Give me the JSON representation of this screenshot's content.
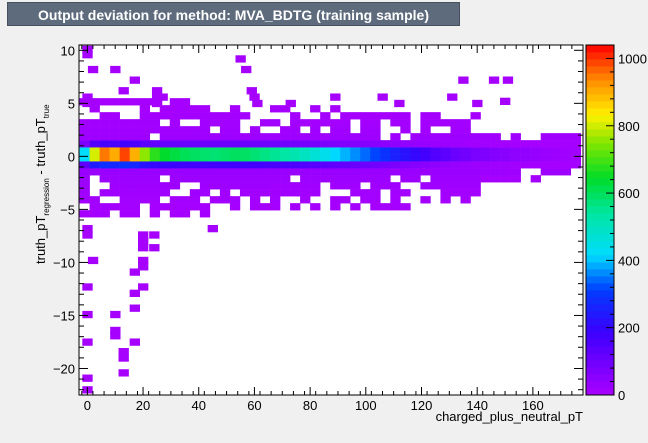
{
  "title": "Output deviation for method: MVA_BDTG (training sample)",
  "chart_data": {
    "type": "heatmap",
    "xlabel": "charged_plus_neutral_pT",
    "ylabel_parts": {
      "base": "truth_pT",
      "sub1": "regression",
      "mid": " - truth_pT",
      "sub2": "true"
    },
    "xlim": [
      -3,
      178
    ],
    "ylim": [
      -22.5,
      10.5
    ],
    "x_ticks": [
      0,
      20,
      40,
      60,
      80,
      100,
      120,
      140,
      160
    ],
    "y_ticks": [
      10,
      5,
      0,
      -5,
      -10,
      -15,
      -20
    ],
    "x_tick_labels": [
      "0",
      "20",
      "40",
      "60",
      "80",
      "100",
      "120",
      "140",
      "160"
    ],
    "y_tick_labels": [
      "10",
      "5",
      "0",
      "−5",
      "−10",
      "−15",
      "−20"
    ],
    "bin_width_x": 3.6,
    "bin_width_y": 0.66,
    "z_range": [
      0,
      1040
    ],
    "colorbar_ticks": [
      0,
      200,
      400,
      600,
      800,
      1000
    ],
    "colorbar_labels": [
      "0",
      "200",
      "400",
      "600",
      "800",
      "1000"
    ],
    "core_profile": [
      {
        "x": 0,
        "v": 420
      },
      {
        "x": 2,
        "v": 760
      },
      {
        "x": 5,
        "v": 980
      },
      {
        "x": 9,
        "v": 880
      },
      {
        "x": 13,
        "v": 1000
      },
      {
        "x": 17,
        "v": 900
      },
      {
        "x": 22,
        "v": 700
      },
      {
        "x": 28,
        "v": 640
      },
      {
        "x": 36,
        "v": 600
      },
      {
        "x": 45,
        "v": 580
      },
      {
        "x": 55,
        "v": 600
      },
      {
        "x": 65,
        "v": 560
      },
      {
        "x": 75,
        "v": 520
      },
      {
        "x": 82,
        "v": 470
      },
      {
        "x": 88,
        "v": 420
      },
      {
        "x": 94,
        "v": 380
      },
      {
        "x": 100,
        "v": 340
      },
      {
        "x": 106,
        "v": 300
      },
      {
        "x": 112,
        "v": 240
      },
      {
        "x": 118,
        "v": 200
      },
      {
        "x": 125,
        "v": 150
      },
      {
        "x": 132,
        "v": 110
      },
      {
        "x": 140,
        "v": 80
      },
      {
        "x": 150,
        "v": 55
      },
      {
        "x": 160,
        "v": 35
      },
      {
        "x": 170,
        "v": 20
      },
      {
        "x": 178,
        "v": 10
      }
    ],
    "outliers": [
      {
        "x": 2,
        "y": 8.2
      },
      {
        "x": 10,
        "y": 8.2
      },
      {
        "x": 17,
        "y": 7.2
      },
      {
        "x": 13,
        "y": 6.2
      },
      {
        "x": 55,
        "y": 9.2
      },
      {
        "x": 57,
        "y": 8.2
      },
      {
        "x": 135,
        "y": 7.2
      },
      {
        "x": 146,
        "y": 7.2
      },
      {
        "x": 151,
        "y": 7.2
      },
      {
        "x": 150,
        "y": 5.2
      },
      {
        "x": 0,
        "y": 5.6
      },
      {
        "x": 0,
        "y": 5.0
      },
      {
        "x": 25,
        "y": 6.2
      },
      {
        "x": 25,
        "y": 5.6
      },
      {
        "x": 25,
        "y": 5.0
      },
      {
        "x": 27,
        "y": 5.6
      },
      {
        "x": 59,
        "y": 6.2
      },
      {
        "x": 60,
        "y": 5.6
      },
      {
        "x": 61,
        "y": 5.0
      },
      {
        "x": 73,
        "y": 5.0
      },
      {
        "x": 89,
        "y": 5.6
      },
      {
        "x": 106,
        "y": 5.6
      },
      {
        "x": 112,
        "y": 5.0
      },
      {
        "x": 131,
        "y": 5.6
      },
      {
        "x": 140,
        "y": 5.0
      },
      {
        "x": 45,
        "y": -6.8
      },
      {
        "x": 20,
        "y": -7.4
      },
      {
        "x": 24,
        "y": -7.4
      },
      {
        "x": 20,
        "y": -8.0
      },
      {
        "x": 24,
        "y": -8.6
      },
      {
        "x": 20,
        "y": -8.6
      },
      {
        "x": 0,
        "y": -6.8
      },
      {
        "x": 0,
        "y": -7.4
      },
      {
        "x": 2,
        "y": -9.8
      },
      {
        "x": 20,
        "y": -9.8
      },
      {
        "x": 20,
        "y": -10.4
      },
      {
        "x": 17,
        "y": -10.9
      },
      {
        "x": 20,
        "y": -12.3
      },
      {
        "x": 17,
        "y": -12.9
      },
      {
        "x": 17,
        "y": -14.3
      },
      {
        "x": 0,
        "y": -12.3
      },
      {
        "x": 0,
        "y": -14.9
      },
      {
        "x": 10,
        "y": -14.9
      },
      {
        "x": 10,
        "y": -16.4
      },
      {
        "x": 10,
        "y": -16.9
      },
      {
        "x": 17,
        "y": -17.5
      },
      {
        "x": 13,
        "y": -18.4
      },
      {
        "x": 13,
        "y": -19.0
      },
      {
        "x": 0,
        "y": -17.5
      },
      {
        "x": 13,
        "y": -20.4
      },
      {
        "x": 0,
        "y": -20.9
      },
      {
        "x": 0,
        "y": -22.0
      },
      {
        "x": 0,
        "y": 10.1
      },
      {
        "x": 0,
        "y": 9.6
      }
    ]
  }
}
